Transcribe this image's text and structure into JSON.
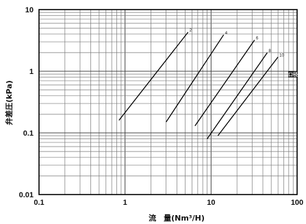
{
  "chart_data": {
    "type": "line",
    "title": "",
    "xlabel": "流　量(Nm³/H)",
    "ylabel": "弁差圧(kPa)",
    "xscale": "log",
    "yscale": "log",
    "xlim": [
      0.1,
      100
    ],
    "ylim": [
      0.01,
      10
    ],
    "grid": true,
    "x_tick_labels": [
      "0.1",
      "1",
      "10",
      "100"
    ],
    "y_tick_labels": [
      "0.01",
      "0.1",
      "1",
      "10"
    ],
    "series": [
      {
        "name": "2",
        "x": [
          0.85,
          5.4
        ],
        "y": [
          0.16,
          4.3
        ]
      },
      {
        "name": "4",
        "x": [
          3.0,
          14.0
        ],
        "y": [
          0.15,
          3.9
        ]
      },
      {
        "name": "6",
        "x": [
          6.5,
          32.0
        ],
        "y": [
          0.13,
          3.2
        ]
      },
      {
        "name": "8",
        "x": [
          9.0,
          45.0
        ],
        "y": [
          0.08,
          2.0
        ]
      },
      {
        "name": "10",
        "x": [
          12.0,
          60.0
        ],
        "y": [
          0.09,
          1.7
        ]
      }
    ],
    "annotation": "口径"
  }
}
